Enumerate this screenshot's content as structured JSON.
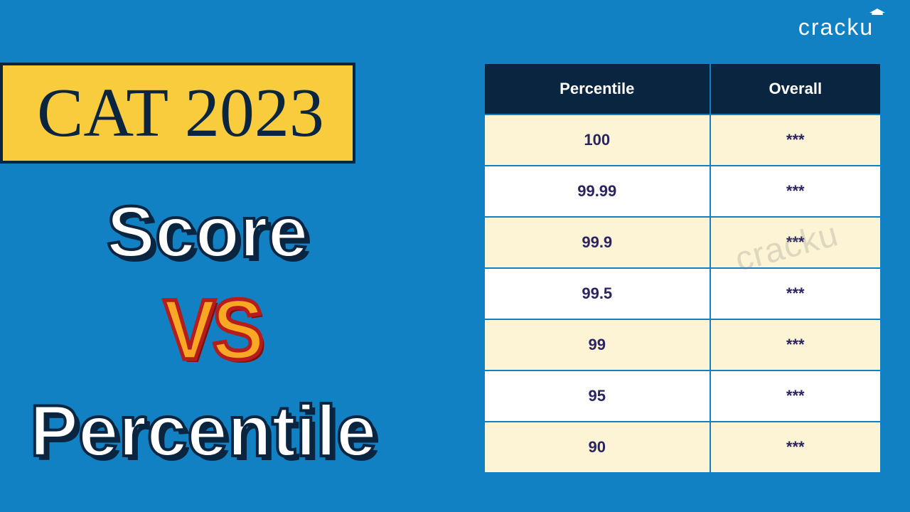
{
  "logo": {
    "text": "cracku"
  },
  "title": {
    "text": "CAT 2023",
    "background_color": "#f9cc3e",
    "text_color": "#0a2540",
    "border_color": "#0a2540"
  },
  "score_label": "Score",
  "vs_label": "VS",
  "percentile_label": "Percentile",
  "table": {
    "columns": [
      "Percentile",
      "Overall"
    ],
    "header_bg": "#0a2540",
    "header_color": "#ffffff",
    "odd_row_bg": "#fdf4d6",
    "even_row_bg": "#ffffff",
    "text_color": "#2a2560",
    "rows": [
      {
        "percentile": "100",
        "overall": "***"
      },
      {
        "percentile": "99.99",
        "overall": "***"
      },
      {
        "percentile": "99.9",
        "overall": "***"
      },
      {
        "percentile": "99.5",
        "overall": "***"
      },
      {
        "percentile": "99",
        "overall": "***"
      },
      {
        "percentile": "95",
        "overall": "***"
      },
      {
        "percentile": "90",
        "overall": "***"
      }
    ]
  },
  "watermark_text": "cracku",
  "background_color": "#1181c4"
}
